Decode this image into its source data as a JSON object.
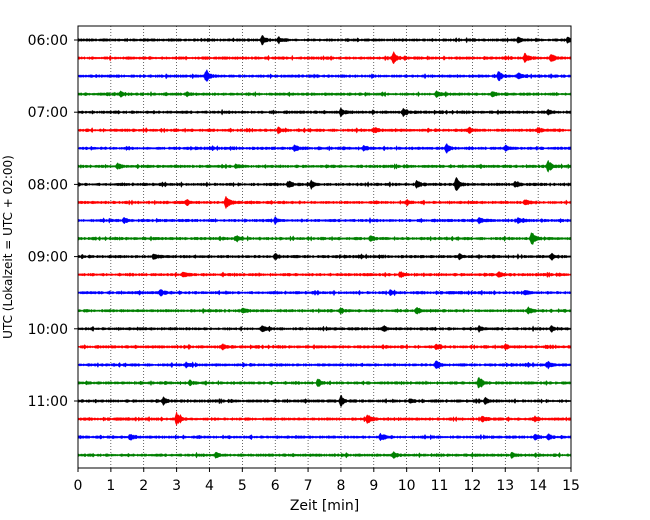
{
  "chart_data": {
    "type": "line",
    "title": "",
    "xlabel": "Zeit  [min]",
    "ylabel": "UTC (Lokalzeit = UTC + 02:00)",
    "xlim": [
      0,
      15
    ],
    "x_ticks": [
      "0",
      "1",
      "2",
      "3",
      "4",
      "5",
      "6",
      "7",
      "8",
      "9",
      "10",
      "11",
      "12",
      "13",
      "14",
      "15"
    ],
    "y_ticks": [
      "06:00",
      "07:00",
      "08:00",
      "09:00",
      "10:00",
      "11:00"
    ],
    "grid": "vertical dotted lines at each minute",
    "legend": "none",
    "trace_interval_min": 15,
    "trace_colors": [
      "#000000",
      "#ff0000",
      "#0000ff",
      "#008000"
    ],
    "traces": [
      {
        "start": "06:00",
        "events": [
          [
            5.6,
            0.5
          ],
          [
            6.1,
            0.4
          ],
          [
            13.4,
            0.35
          ],
          [
            14.9,
            0.4
          ]
        ]
      },
      {
        "start": "06:15",
        "events": [
          [
            9.6,
            0.9
          ],
          [
            13.6,
            0.7
          ],
          [
            14.4,
            0.5
          ]
        ]
      },
      {
        "start": "06:30",
        "events": [
          [
            3.9,
            1.0
          ],
          [
            12.8,
            0.7
          ],
          [
            13.4,
            0.45
          ]
        ]
      },
      {
        "start": "06:45",
        "events": [
          [
            1.3,
            0.4
          ],
          [
            3.3,
            0.35
          ],
          [
            10.9,
            0.45
          ],
          [
            12.6,
            0.35
          ]
        ]
      },
      {
        "start": "07:00",
        "events": [
          [
            8.0,
            0.5
          ],
          [
            9.9,
            0.5
          ],
          [
            14.3,
            0.35
          ]
        ]
      },
      {
        "start": "07:15",
        "events": [
          [
            6.1,
            0.4
          ],
          [
            9.0,
            0.5
          ],
          [
            11.9,
            0.45
          ],
          [
            14.0,
            0.4
          ]
        ]
      },
      {
        "start": "07:30",
        "events": [
          [
            6.6,
            0.5
          ],
          [
            8.7,
            0.4
          ],
          [
            11.2,
            0.7
          ],
          [
            13.0,
            0.4
          ]
        ]
      },
      {
        "start": "07:45",
        "events": [
          [
            1.2,
            0.45
          ],
          [
            4.8,
            0.35
          ],
          [
            14.3,
            0.9
          ]
        ]
      },
      {
        "start": "08:00",
        "events": [
          [
            6.4,
            0.5
          ],
          [
            7.1,
            0.45
          ],
          [
            10.3,
            0.5
          ],
          [
            11.5,
            1.0
          ],
          [
            13.3,
            0.4
          ]
        ]
      },
      {
        "start": "08:15",
        "events": [
          [
            3.3,
            0.45
          ],
          [
            4.5,
            1.0
          ],
          [
            10.0,
            0.4
          ],
          [
            13.6,
            0.4
          ]
        ]
      },
      {
        "start": "08:30",
        "events": [
          [
            1.4,
            0.4
          ],
          [
            6.0,
            0.4
          ],
          [
            12.2,
            0.4
          ],
          [
            13.4,
            0.4
          ]
        ]
      },
      {
        "start": "08:45",
        "events": [
          [
            4.8,
            0.4
          ],
          [
            8.9,
            0.4
          ],
          [
            13.8,
            1.0
          ]
        ]
      },
      {
        "start": "09:00",
        "events": [
          [
            2.3,
            0.4
          ],
          [
            6.0,
            0.5
          ],
          [
            11.6,
            0.4
          ],
          [
            14.4,
            0.4
          ]
        ]
      },
      {
        "start": "09:15",
        "events": [
          [
            3.2,
            0.4
          ],
          [
            9.8,
            0.4
          ],
          [
            12.8,
            0.5
          ]
        ]
      },
      {
        "start": "09:30",
        "events": [
          [
            2.5,
            0.4
          ],
          [
            9.5,
            0.4
          ],
          [
            13.6,
            0.4
          ]
        ]
      },
      {
        "start": "09:45",
        "events": [
          [
            5.0,
            0.4
          ],
          [
            8.0,
            0.35
          ],
          [
            10.3,
            0.4
          ],
          [
            13.7,
            0.55
          ]
        ]
      },
      {
        "start": "10:00",
        "events": [
          [
            5.6,
            0.45
          ],
          [
            9.3,
            0.45
          ],
          [
            12.2,
            0.4
          ],
          [
            14.4,
            0.4
          ]
        ]
      },
      {
        "start": "10:15",
        "events": [
          [
            4.4,
            0.4
          ],
          [
            10.9,
            0.4
          ],
          [
            13.0,
            0.35
          ]
        ]
      },
      {
        "start": "10:30",
        "events": [
          [
            3.3,
            0.4
          ],
          [
            10.9,
            0.7
          ],
          [
            14.3,
            0.4
          ]
        ]
      },
      {
        "start": "10:45",
        "events": [
          [
            7.3,
            0.6
          ],
          [
            12.2,
            1.0
          ],
          [
            3.4,
            0.35
          ]
        ]
      },
      {
        "start": "11:00",
        "events": [
          [
            2.6,
            0.45
          ],
          [
            8.0,
            0.7
          ],
          [
            10.1,
            0.4
          ],
          [
            12.4,
            0.4
          ]
        ]
      },
      {
        "start": "11:15",
        "events": [
          [
            3.0,
            1.0
          ],
          [
            8.8,
            0.6
          ],
          [
            12.3,
            0.4
          ],
          [
            13.9,
            0.4
          ]
        ]
      },
      {
        "start": "11:30",
        "events": [
          [
            1.6,
            0.45
          ],
          [
            9.2,
            0.55
          ],
          [
            13.9,
            0.4
          ],
          [
            14.3,
            0.4
          ]
        ]
      },
      {
        "start": "11:45",
        "events": [
          [
            4.2,
            0.4
          ],
          [
            9.6,
            0.4
          ],
          [
            13.2,
            0.35
          ]
        ]
      }
    ]
  }
}
